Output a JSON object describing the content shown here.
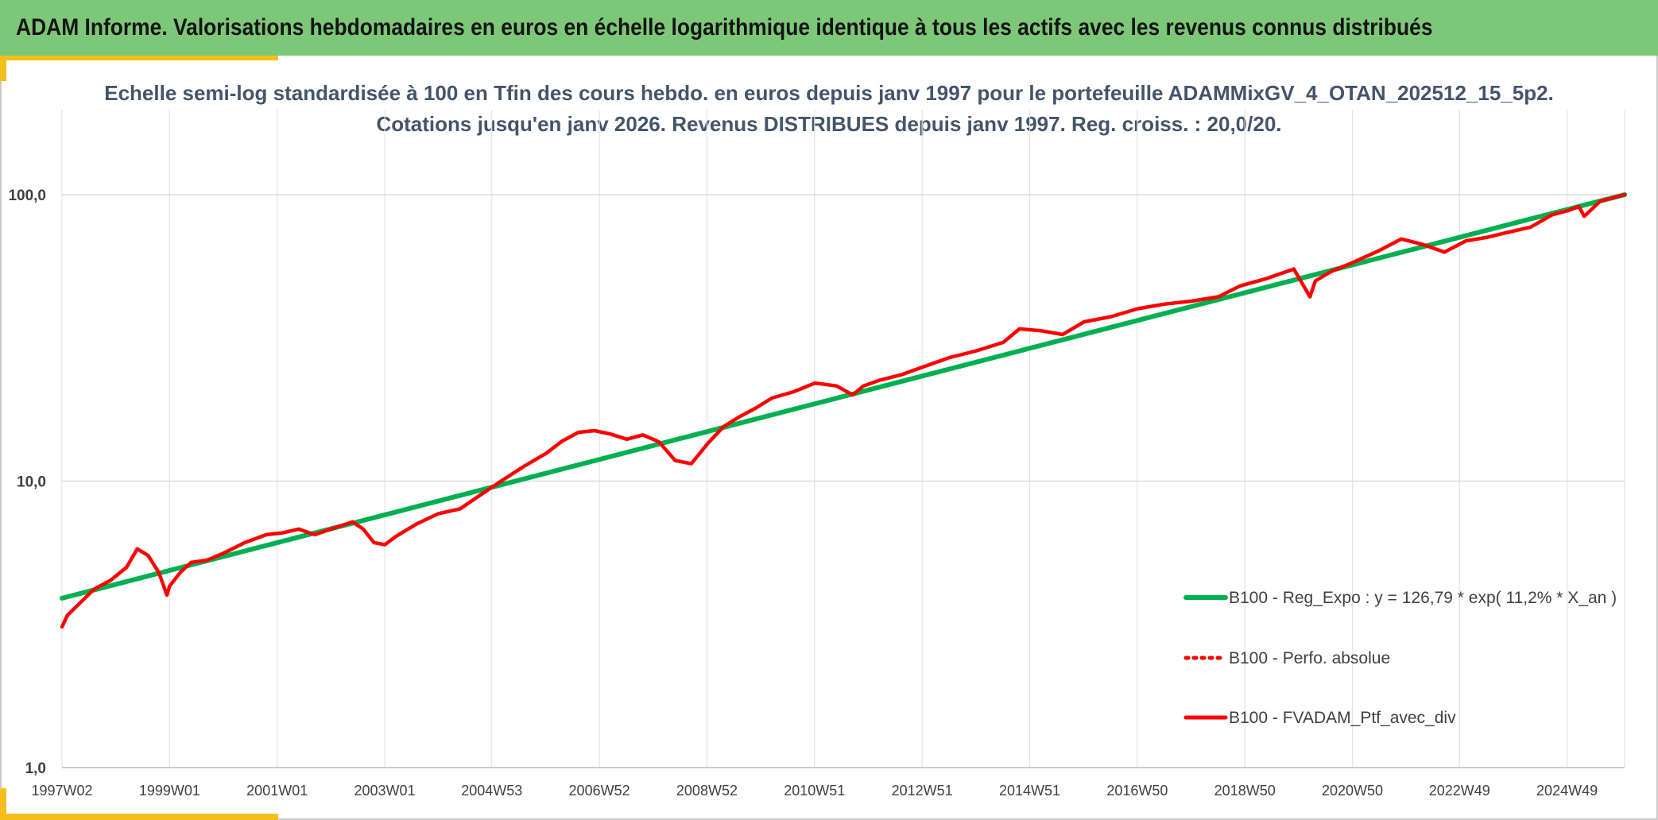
{
  "banner": {
    "title": "ADAM Informe. Valorisations hebdomadaires en euros en échelle logarithmique identique à tous les actifs avec les revenus connus distribués"
  },
  "colors": {
    "banner_bg": "#7dc878",
    "accent": "#f5be1a",
    "regression": "#00b050",
    "portfolio": "#ff0000",
    "title_text": "#44546a"
  },
  "chart_data": {
    "type": "line",
    "title": "Echelle semi-log standardisée à 100 en Tfin des cours hebdo. en euros depuis janv 1997 pour le portefeuille ADAMMixGV_4_OTAN_202512_15_5p2.",
    "subtitle": "Cotations jusqu'en janv 2026. Revenus DISTRIBUES depuis janv 1997. Reg. croiss. : 20,0/20.",
    "y_scale": "log",
    "ylim": [
      1,
      100
    ],
    "y_ticks": [
      {
        "value": 1,
        "label": "1,0"
      },
      {
        "value": 10,
        "label": "10,0"
      },
      {
        "value": 100,
        "label": "100,0"
      }
    ],
    "xlim": [
      1997.0,
      2026.05
    ],
    "x_ticks": [
      {
        "x": 1997.0,
        "label": "1997W02"
      },
      {
        "x": 1999.0,
        "label": "1999W01"
      },
      {
        "x": 2001.0,
        "label": "2001W01"
      },
      {
        "x": 2003.0,
        "label": "2003W01"
      },
      {
        "x": 2004.99,
        "label": "2004W53"
      },
      {
        "x": 2006.99,
        "label": "2006W52"
      },
      {
        "x": 2008.99,
        "label": "2008W52"
      },
      {
        "x": 2010.99,
        "label": "2010W51"
      },
      {
        "x": 2012.99,
        "label": "2012W51"
      },
      {
        "x": 2014.99,
        "label": "2014W51"
      },
      {
        "x": 2016.99,
        "label": "2016W50"
      },
      {
        "x": 2018.99,
        "label": "2018W50"
      },
      {
        "x": 2020.99,
        "label": "2020W50"
      },
      {
        "x": 2022.98,
        "label": "2022W49"
      },
      {
        "x": 2024.98,
        "label": "2024W49"
      }
    ],
    "grid": true,
    "legend_position": "bottom-right",
    "series": [
      {
        "name": "B100 - Reg_Expo : y = 126,79 * exp( 11,2% *  X_an )",
        "style": "solid",
        "color": "#00b050",
        "x": [
          1997.0,
          2026.05
        ],
        "y": [
          3.9,
          100.0
        ]
      },
      {
        "name": "B100 - Perfo. absolue",
        "style": "dotted",
        "color": "#ff0000",
        "x": [],
        "y": []
      },
      {
        "name": "B100 - FVADAM_Ptf_avec_div",
        "style": "solid",
        "color": "#ff0000",
        "x": [
          1997.0,
          1997.1,
          1997.3,
          1997.6,
          1997.9,
          1998.2,
          1998.4,
          1998.6,
          1998.8,
          1998.95,
          1999.0,
          1999.2,
          1999.4,
          1999.7,
          2000.0,
          2000.4,
          2000.8,
          2001.1,
          2001.4,
          2001.7,
          2002.0,
          2002.4,
          2002.6,
          2002.8,
          2003.0,
          2003.2,
          2003.6,
          2004.0,
          2004.4,
          2004.8,
          2005.2,
          2005.6,
          2006.0,
          2006.3,
          2006.6,
          2006.9,
          2007.2,
          2007.5,
          2007.8,
          2008.1,
          2008.4,
          2008.7,
          2009.0,
          2009.3,
          2009.6,
          2009.9,
          2010.2,
          2010.6,
          2011.0,
          2011.4,
          2011.7,
          2011.9,
          2012.2,
          2012.6,
          2013.0,
          2013.5,
          2014.0,
          2014.5,
          2014.8,
          2015.2,
          2015.6,
          2016.0,
          2016.5,
          2017.0,
          2017.5,
          2018.0,
          2018.5,
          2018.9,
          2019.4,
          2019.9,
          2020.2,
          2020.3,
          2020.6,
          2021.0,
          2021.5,
          2021.9,
          2022.3,
          2022.7,
          2023.1,
          2023.5,
          2023.9,
          2024.3,
          2024.7,
          2025.0,
          2025.2,
          2025.3,
          2025.6,
          2026.05
        ],
        "y": [
          3.1,
          3.4,
          3.7,
          4.2,
          4.5,
          5.0,
          5.8,
          5.5,
          4.8,
          4.0,
          4.3,
          4.8,
          5.2,
          5.3,
          5.6,
          6.1,
          6.5,
          6.6,
          6.8,
          6.5,
          6.8,
          7.2,
          6.8,
          6.1,
          6.0,
          6.4,
          7.1,
          7.7,
          8.0,
          9.0,
          10.1,
          11.3,
          12.5,
          13.8,
          14.8,
          15.0,
          14.6,
          14.0,
          14.5,
          13.7,
          11.8,
          11.5,
          13.5,
          15.5,
          16.8,
          18.0,
          19.5,
          20.5,
          22.0,
          21.5,
          20.0,
          21.5,
          22.5,
          23.5,
          25.0,
          27.0,
          28.5,
          30.5,
          34.0,
          33.5,
          32.5,
          36.0,
          37.5,
          40.0,
          41.5,
          42.5,
          44.0,
          48.0,
          51.0,
          55.0,
          44.0,
          50.0,
          54.0,
          58.0,
          64.0,
          70.0,
          67.0,
          63.0,
          69.0,
          71.0,
          74.0,
          77.0,
          85.0,
          88.0,
          91.0,
          84.0,
          95.0,
          100.0
        ]
      }
    ]
  }
}
